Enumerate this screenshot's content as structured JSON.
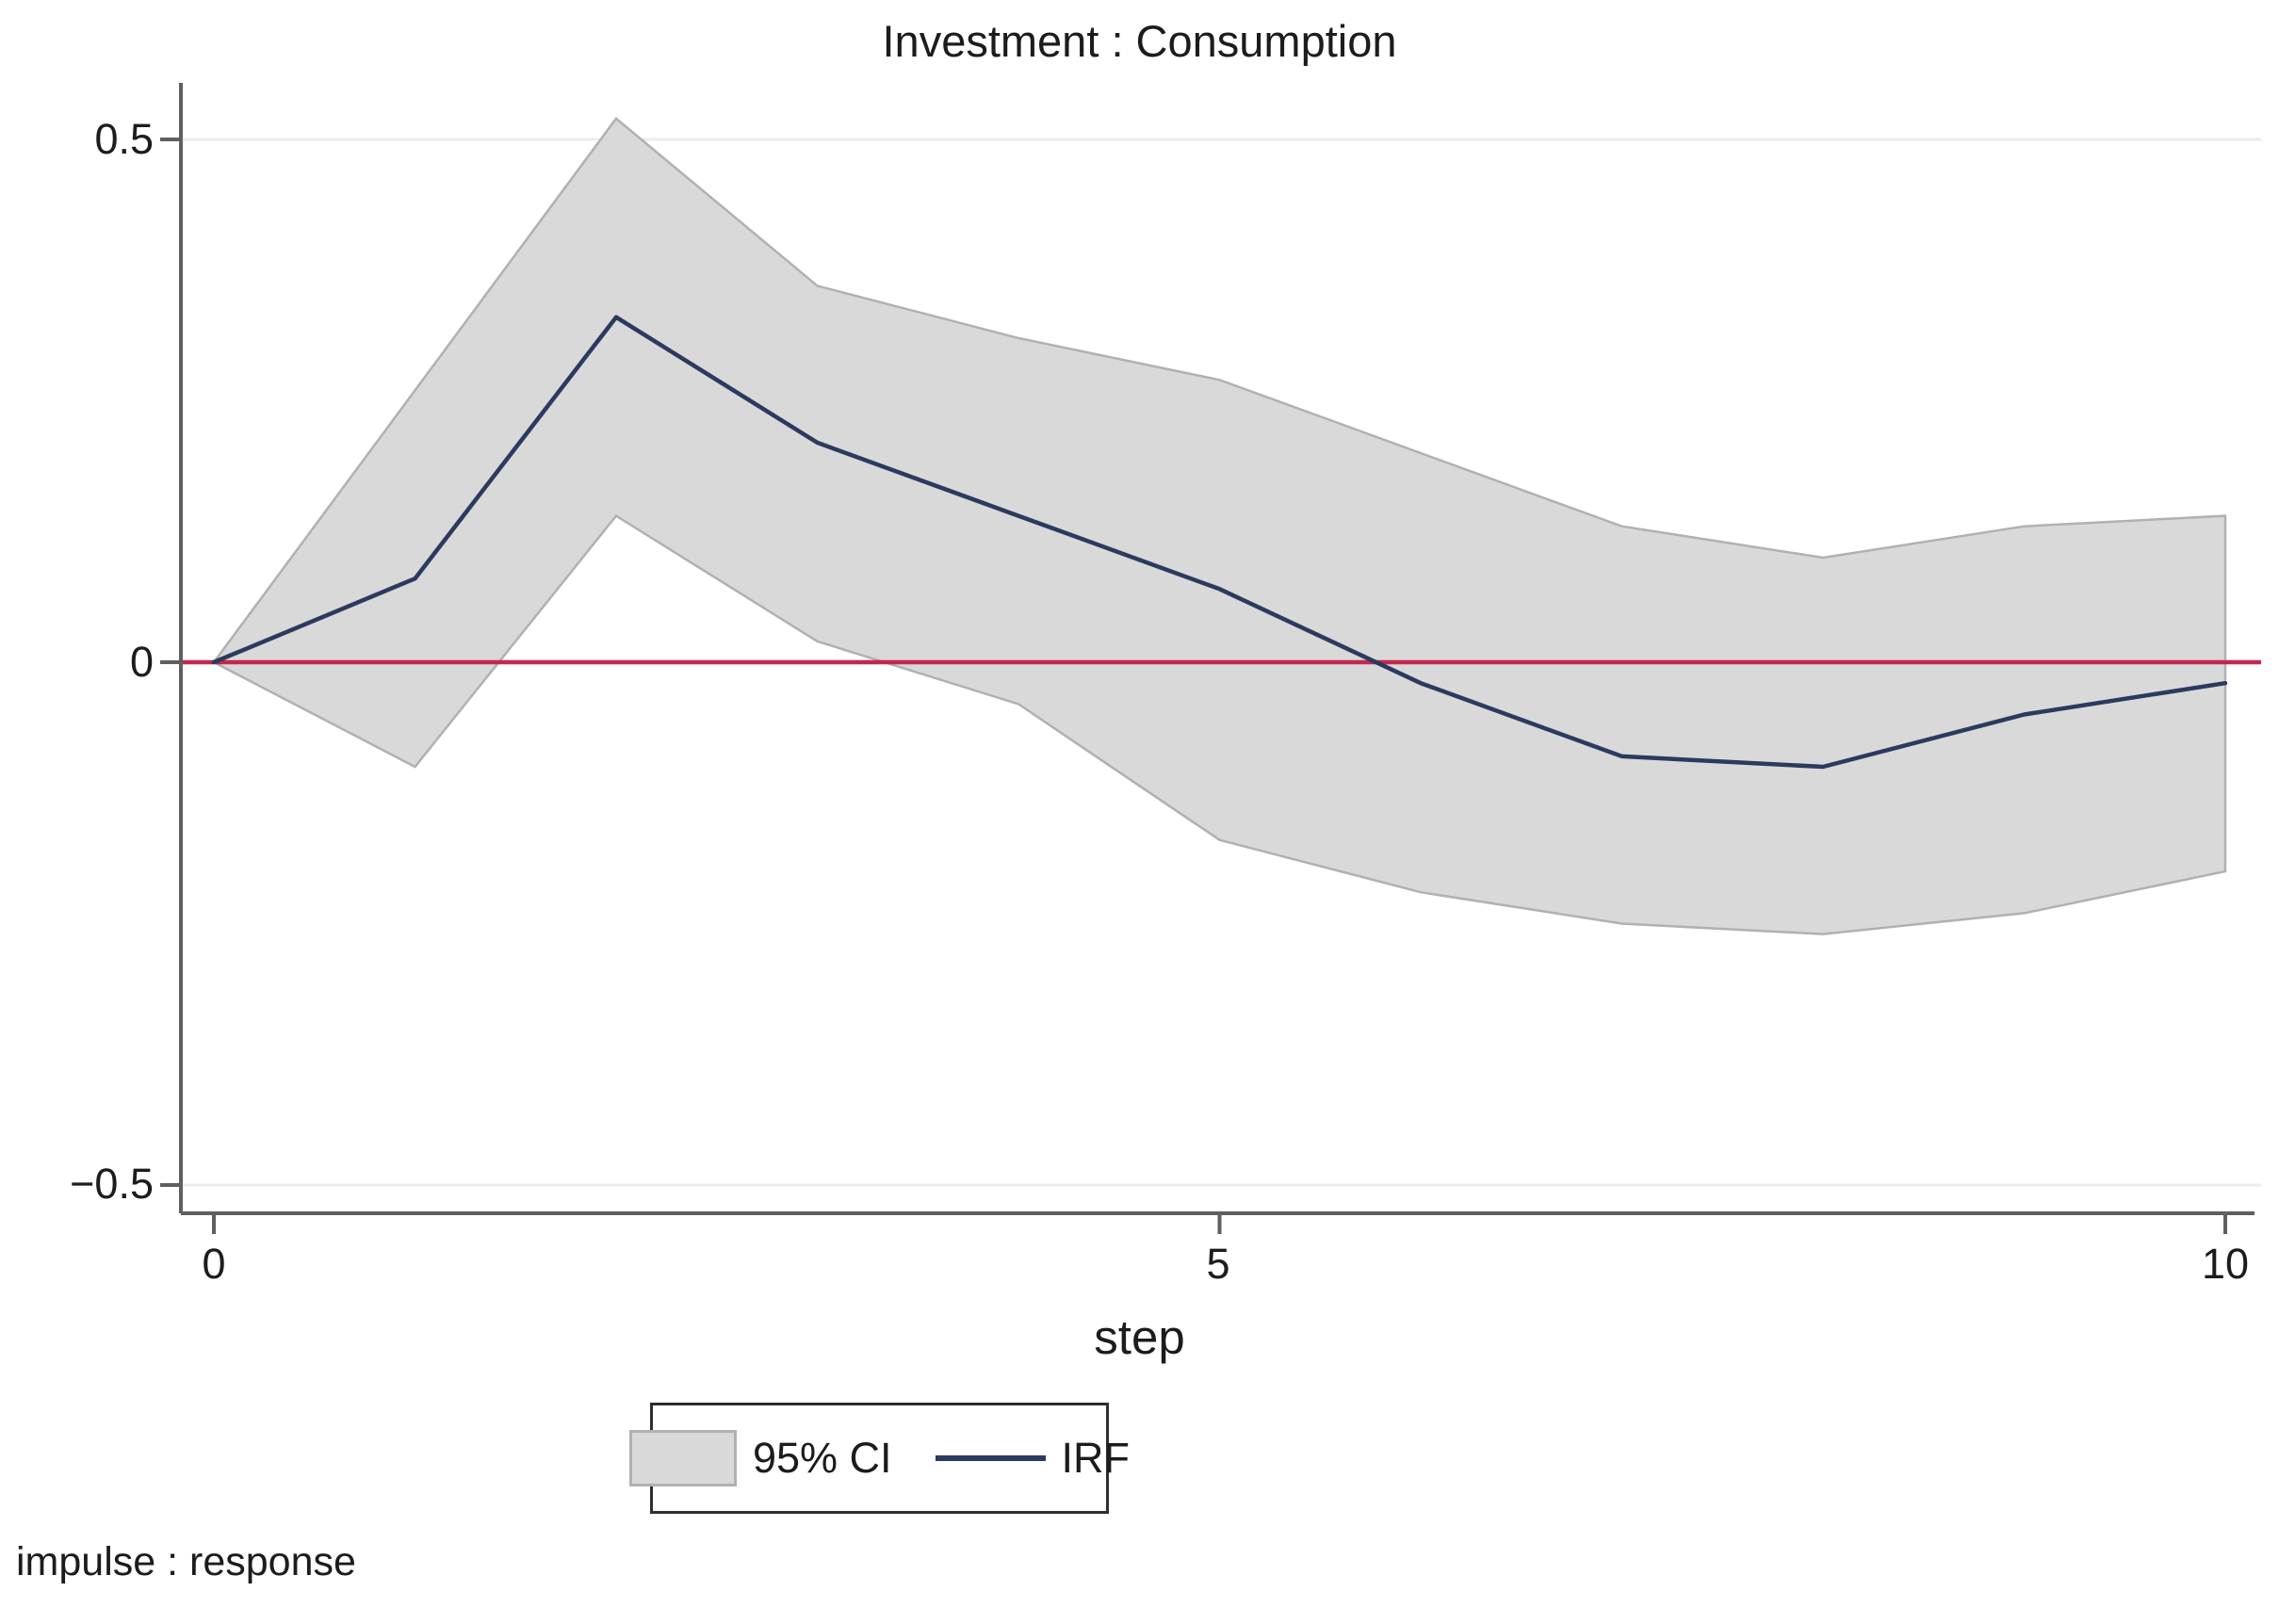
{
  "title": "Investment : Consumption",
  "xlabel": "step",
  "footer": "impulse : response",
  "legend": {
    "items": [
      {
        "label": "95% CI",
        "type": "band"
      },
      {
        "label": "IRF",
        "type": "line"
      }
    ]
  },
  "axes": {
    "y_ticks": [
      {
        "value": 0.5,
        "label": "0.5"
      },
      {
        "value": 0,
        "label": "0"
      },
      {
        "value": -0.5,
        "label": "−0.5"
      }
    ],
    "x_ticks": [
      {
        "value": 0,
        "label": "0"
      },
      {
        "value": 5,
        "label": "5"
      },
      {
        "value": 10,
        "label": "10"
      }
    ],
    "ylim": [
      -0.55,
      0.55
    ],
    "xlim": [
      0,
      10
    ]
  },
  "colors": {
    "band": "#d9d9d9",
    "band_border": "#b1b1b1",
    "irf_line": "#2b3a5f",
    "zero_line": "#c4274e",
    "grid": "#ececec",
    "axis": "#5f5f5f",
    "text": "#1c1c1c"
  },
  "chart_data": {
    "type": "area",
    "title": "Investment : Consumption",
    "xlabel": "step",
    "ylabel": "",
    "x": [
      0,
      1,
      2,
      3,
      4,
      5,
      6,
      7,
      8,
      9,
      10
    ],
    "series": [
      {
        "name": "IRF",
        "values": [
          0,
          0.08,
          0.33,
          0.21,
          0.14,
          0.07,
          -0.02,
          -0.09,
          -0.1,
          -0.05,
          -0.02
        ]
      },
      {
        "name": "95% CI upper",
        "values": [
          0,
          0.26,
          0.52,
          0.36,
          0.31,
          0.27,
          0.2,
          0.13,
          0.1,
          0.13,
          0.14
        ]
      },
      {
        "name": "95% CI lower",
        "values": [
          0,
          -0.1,
          0.14,
          0.02,
          -0.04,
          -0.17,
          -0.22,
          -0.25,
          -0.26,
          -0.24,
          -0.2
        ]
      }
    ],
    "zero_line": 0,
    "grid": "horizontal",
    "legend_position": "bottom",
    "footnote": "impulse : response"
  }
}
